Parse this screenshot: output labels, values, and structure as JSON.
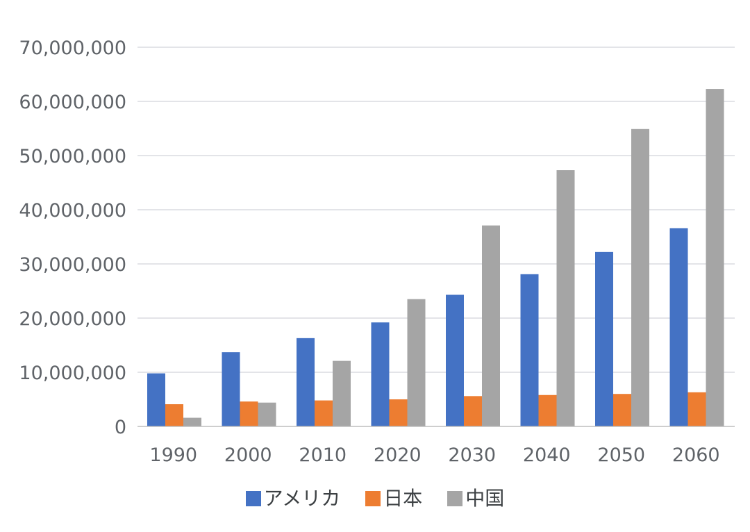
{
  "chart_data": {
    "type": "bar",
    "title": "",
    "xlabel": "",
    "ylabel": "",
    "categories": [
      "1990",
      "2000",
      "2010",
      "2020",
      "2030",
      "2040",
      "2050",
      "2060"
    ],
    "series": [
      {
        "name": "アメリカ",
        "color": "#4472c4",
        "values": [
          9800000,
          13700000,
          16300000,
          19200000,
          24300000,
          28100000,
          32200000,
          36600000
        ]
      },
      {
        "name": "日本",
        "color": "#ed7d31",
        "values": [
          4100000,
          4600000,
          4800000,
          5000000,
          5600000,
          5800000,
          6000000,
          6300000
        ]
      },
      {
        "name": "中国",
        "color": "#a5a5a5",
        "values": [
          1600000,
          4400000,
          12100000,
          23500000,
          37100000,
          47300000,
          54900000,
          62300000
        ]
      }
    ],
    "ylim": [
      0,
      70000000
    ],
    "yticks": [
      0,
      10000000,
      20000000,
      30000000,
      40000000,
      50000000,
      60000000,
      70000000
    ],
    "ytick_labels": [
      "0",
      "10,000,000",
      "20,000,000",
      "30,000,000",
      "40,000,000",
      "50,000,000",
      "60,000,000",
      "70,000,000"
    ],
    "grid": true,
    "legend_position": "bottom"
  }
}
